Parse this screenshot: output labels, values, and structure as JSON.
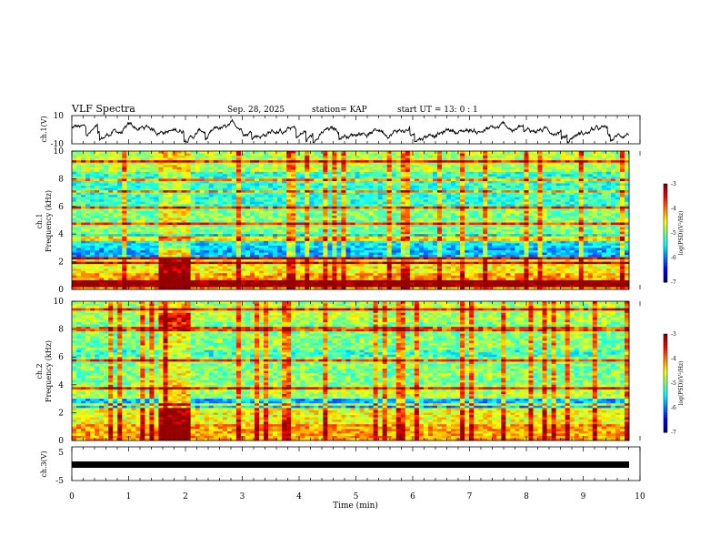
{
  "header": {
    "title": "VLF Spectra",
    "date": "Sep. 28, 2025",
    "station": "station= KAP",
    "start": "start  UT =   13: 0   : 1"
  },
  "chart_data": [
    {
      "id": "ch1-waveform",
      "type": "line",
      "ylabel": "ch.1(V)",
      "ylim": [
        -10,
        10
      ],
      "ytick_labels": [
        "10",
        "-10"
      ],
      "xlim": [
        0,
        10
      ]
    },
    {
      "id": "ch1-spectrogram",
      "type": "heatmap",
      "ylabel": "ch.1\nFrequency (kHz)",
      "ylim": [
        0,
        10
      ],
      "ytick_labels": [
        "0",
        "2",
        "4",
        "6",
        "8",
        "10"
      ],
      "xlim": [
        0,
        10
      ],
      "colorbar": {
        "label": "log(PSD)(V²/Hz)",
        "range": [
          -7,
          -3
        ],
        "ticks": [
          "-3",
          "-4",
          "-5",
          "-6",
          "-7"
        ]
      }
    },
    {
      "id": "ch2-spectrogram",
      "type": "heatmap",
      "ylabel": "ch.2\nFrequency (kHz)",
      "ylim": [
        0,
        10
      ],
      "ytick_labels": [
        "0",
        "2",
        "4",
        "6",
        "8",
        "10"
      ],
      "xlim": [
        0,
        10
      ],
      "colorbar": {
        "label": "log(PSD)(V²/Hz)",
        "range": [
          -7,
          -3
        ],
        "ticks": [
          "-3",
          "-4",
          "-5",
          "-6",
          "-7"
        ]
      }
    },
    {
      "id": "ch3-waveform",
      "type": "line",
      "ylabel": "ch.3(V)",
      "ylim": [
        -5,
        5
      ],
      "ytick_labels": [
        "5",
        "-5"
      ],
      "xlim": [
        0,
        10
      ],
      "xlabel": "Time (min)",
      "xtick_labels": [
        "0",
        "1",
        "2",
        "3",
        "4",
        "5",
        "6",
        "7",
        "8",
        "9",
        "10"
      ]
    }
  ],
  "colors": {
    "line": "#000000",
    "frame": "#000000"
  }
}
